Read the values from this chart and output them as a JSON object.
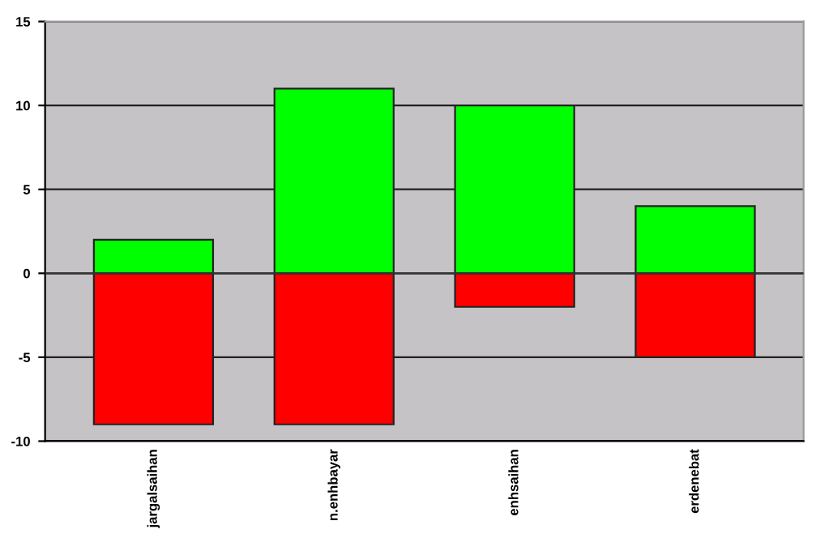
{
  "chart_data": {
    "type": "bar",
    "stacked": true,
    "categories": [
      "jargalsaihan",
      "n.enhbayar",
      "enhsaihan",
      "erdenebat"
    ],
    "series": [
      {
        "color": "#00ff00",
        "values": [
          2,
          11,
          10,
          4
        ]
      },
      {
        "color": "#ff0000",
        "values": [
          -9,
          -9,
          -2,
          -5
        ]
      }
    ],
    "ylim": [
      -10,
      15
    ],
    "yticks": [
      -10,
      -5,
      0,
      5,
      10,
      15
    ],
    "grid": "y",
    "legend": false
  }
}
